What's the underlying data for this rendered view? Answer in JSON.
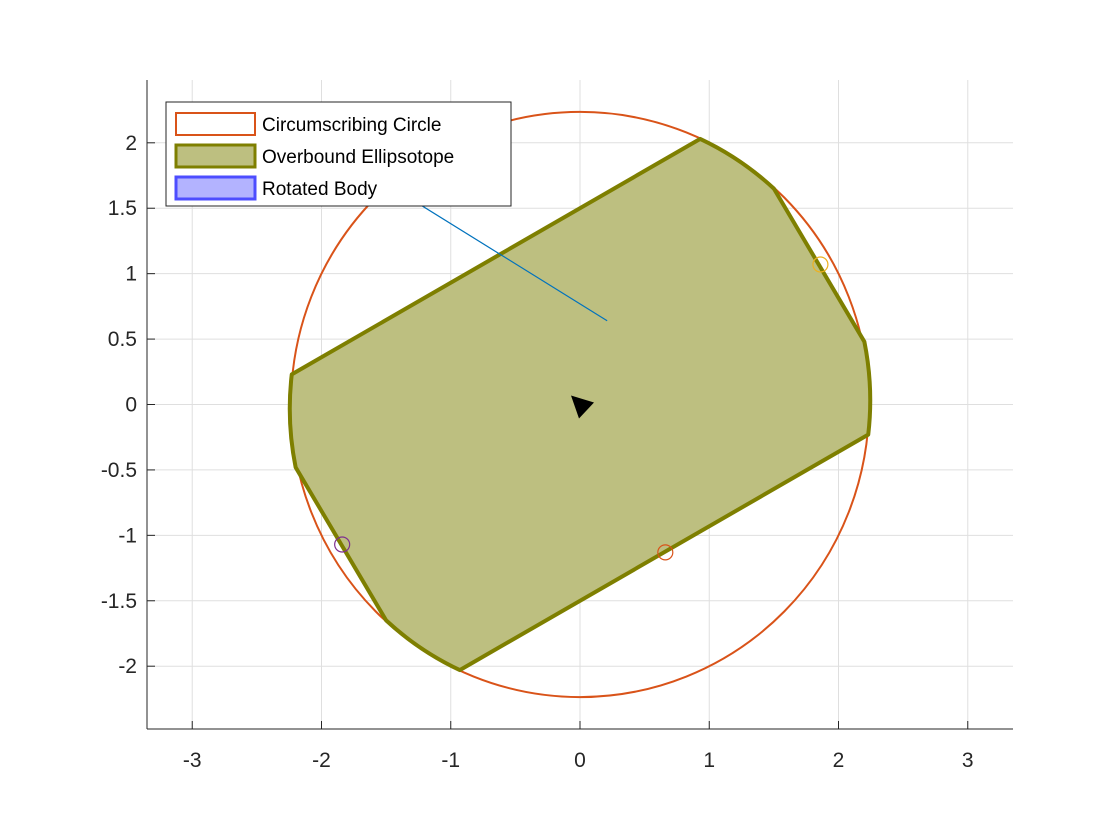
{
  "chart_data": {
    "type": "area",
    "title": "",
    "xlabel": "",
    "ylabel": "",
    "xlim": [
      -3.35,
      3.35
    ],
    "ylim": [
      -2.48,
      2.48
    ],
    "x_ticks": [
      -3,
      -2,
      -1,
      0,
      1,
      2,
      3
    ],
    "y_ticks": [
      -2,
      -1.5,
      -1,
      -0.5,
      0,
      0.5,
      1,
      1.5,
      2
    ],
    "x_tick_labels": [
      "-3",
      "-2",
      "-1",
      "0",
      "1",
      "2",
      "3"
    ],
    "y_tick_labels": [
      "-2",
      "-1.5",
      "-1",
      "-0.5",
      "0",
      "0.5",
      "1",
      "1.5",
      "2"
    ],
    "grid": true,
    "legend_position": "top-left",
    "legend": [
      {
        "label": "Circumscribing Circle",
        "edge_color": "#d95319",
        "fill": "none"
      },
      {
        "label": "Overbound Ellipsotope",
        "edge_color": "#7e7f00",
        "fill": "#bdbf80"
      },
      {
        "label": "Rotated Body",
        "edge_color": "#4d4dff",
        "fill": "#b3b3ff"
      }
    ],
    "circle": {
      "center": [
        0,
        0
      ],
      "radius": 2.236,
      "color": "#d95319"
    },
    "ellipsotope": {
      "edge_color": "#7e7f00",
      "fill_color": "#bdbf80",
      "vertices": [
        [
          -2.23,
          0.23
        ],
        [
          0.93,
          2.03
        ],
        [
          1.5,
          1.65
        ],
        [
          2.2,
          0.48
        ],
        [
          2.23,
          -0.23
        ],
        [
          -0.93,
          -2.03
        ],
        [
          -1.5,
          -1.65
        ],
        [
          -2.2,
          -0.48
        ]
      ],
      "arcs": [
        [
          1,
          2
        ],
        [
          3,
          4
        ],
        [
          5,
          6
        ],
        [
          7,
          0
        ]
      ]
    },
    "line_segment": {
      "from": [
        -1.6,
        1.75
      ],
      "to": [
        0.21,
        0.64
      ],
      "color": "#0072bd"
    },
    "markers": [
      {
        "x": 1.86,
        "y": 1.07,
        "color": "#edb120"
      },
      {
        "x": 0.66,
        "y": -1.13,
        "color": "#d95319"
      },
      {
        "x": -1.84,
        "y": -1.07,
        "color": "#7e2f8e"
      }
    ],
    "arrow": {
      "x": 0.0,
      "y": 0.0,
      "color": "#000000"
    }
  }
}
